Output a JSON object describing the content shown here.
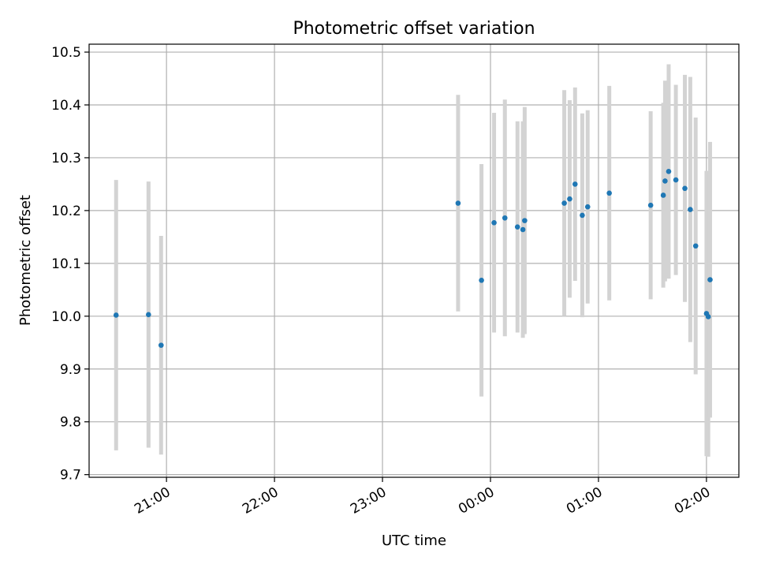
{
  "chart_data": {
    "type": "scatter",
    "title": "Photometric offset variation",
    "xlabel": "UTC time",
    "ylabel": "Photometric offset",
    "x_unit": "time",
    "xlim": [
      "20:17",
      "02:18"
    ],
    "ylim": [
      9.695,
      10.515
    ],
    "x_ticks": [
      "21:00",
      "22:00",
      "23:00",
      "00:00",
      "01:00",
      "02:00"
    ],
    "y_ticks": [
      "9.7",
      "9.8",
      "9.9",
      "10.0",
      "10.1",
      "10.2",
      "10.3",
      "10.4",
      "10.5"
    ],
    "grid": true,
    "point_color": "#1f77b4",
    "errorbar_color": "#d3d3d3",
    "points": [
      {
        "x": "20:32",
        "y": 10.002,
        "err": 0.256
      },
      {
        "x": "20:50",
        "y": 10.003,
        "err": 0.252
      },
      {
        "x": "20:57",
        "y": 9.945,
        "err": 0.207
      },
      {
        "x": "23:42",
        "y": 10.214,
        "err": 0.205
      },
      {
        "x": "23:55",
        "y": 10.068,
        "err": 0.22
      },
      {
        "x": "00:02",
        "y": 10.177,
        "err": 0.208
      },
      {
        "x": "00:08",
        "y": 10.186,
        "err": 0.224
      },
      {
        "x": "00:15",
        "y": 10.169,
        "err": 0.2
      },
      {
        "x": "00:18",
        "y": 10.164,
        "err": 0.205
      },
      {
        "x": "00:19",
        "y": 10.181,
        "err": 0.215
      },
      {
        "x": "00:41",
        "y": 10.214,
        "err": 0.214
      },
      {
        "x": "00:44",
        "y": 10.222,
        "err": 0.187
      },
      {
        "x": "00:47",
        "y": 10.25,
        "err": 0.183
      },
      {
        "x": "00:51",
        "y": 10.191,
        "err": 0.193
      },
      {
        "x": "00:54",
        "y": 10.207,
        "err": 0.183
      },
      {
        "x": "01:06",
        "y": 10.233,
        "err": 0.203
      },
      {
        "x": "01:29",
        "y": 10.21,
        "err": 0.178
      },
      {
        "x": "01:36",
        "y": 10.229,
        "err": 0.175
      },
      {
        "x": "01:37",
        "y": 10.256,
        "err": 0.19
      },
      {
        "x": "01:39",
        "y": 10.274,
        "err": 0.203
      },
      {
        "x": "01:43",
        "y": 10.258,
        "err": 0.18
      },
      {
        "x": "01:48",
        "y": 10.242,
        "err": 0.215
      },
      {
        "x": "01:51",
        "y": 10.202,
        "err": 0.251
      },
      {
        "x": "01:54",
        "y": 10.133,
        "err": 0.243
      },
      {
        "x": "02:00",
        "y": 10.005,
        "err": 0.27
      },
      {
        "x": "02:01",
        "y": 9.999,
        "err": 0.265
      },
      {
        "x": "02:02",
        "y": 10.069,
        "err": 0.261
      }
    ]
  }
}
